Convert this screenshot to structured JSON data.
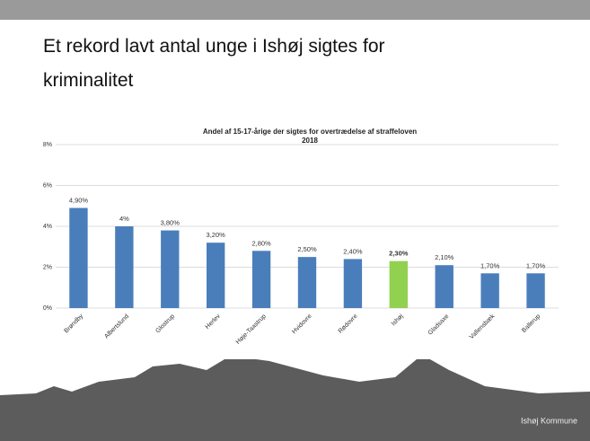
{
  "slide": {
    "title": "Et rekord lavt antal unge i Ishøj sigtes for kriminalitet",
    "footer": "Ishøj Kommune"
  },
  "chart_data": {
    "type": "bar",
    "title": "Andel af 15-17-årige der sigtes for overtrædelse af straffeloven",
    "subtitle": "2018",
    "categories": [
      "Brøndby",
      "Albertslund",
      "Glostrup",
      "Herlev",
      "Høje-Taastrup",
      "Hvidovre",
      "Rødovre",
      "Ishøj",
      "Gladsaxe",
      "Vallensbæk",
      "Ballerup"
    ],
    "values": [
      4.9,
      4,
      3.8,
      3.2,
      2.8,
      2.5,
      2.4,
      2.3,
      2.1,
      1.7,
      1.7
    ],
    "value_labels": [
      "4,90%",
      "4%",
      "3,80%",
      "3,20%",
      "2,80%",
      "2,50%",
      "2,40%",
      "2,30%",
      "2,10%",
      "1,70%",
      "1,70%"
    ],
    "color": "#4a7ebb",
    "colors": [
      "#4a7ebb",
      "#4a7ebb",
      "#4a7ebb",
      "#4a7ebb",
      "#4a7ebb",
      "#4a7ebb",
      "#4a7ebb",
      "#92d050",
      "#4a7ebb",
      "#4a7ebb",
      "#4a7ebb"
    ],
    "ylim": [
      0,
      8
    ],
    "yticks": [
      {
        "value": 0,
        "label": "0%"
      },
      {
        "value": 2,
        "label": "2%"
      },
      {
        "value": 4,
        "label": "4%"
      },
      {
        "value": 6,
        "label": "6%"
      },
      {
        "value": 8,
        "label": "8%"
      }
    ],
    "grid": true
  }
}
